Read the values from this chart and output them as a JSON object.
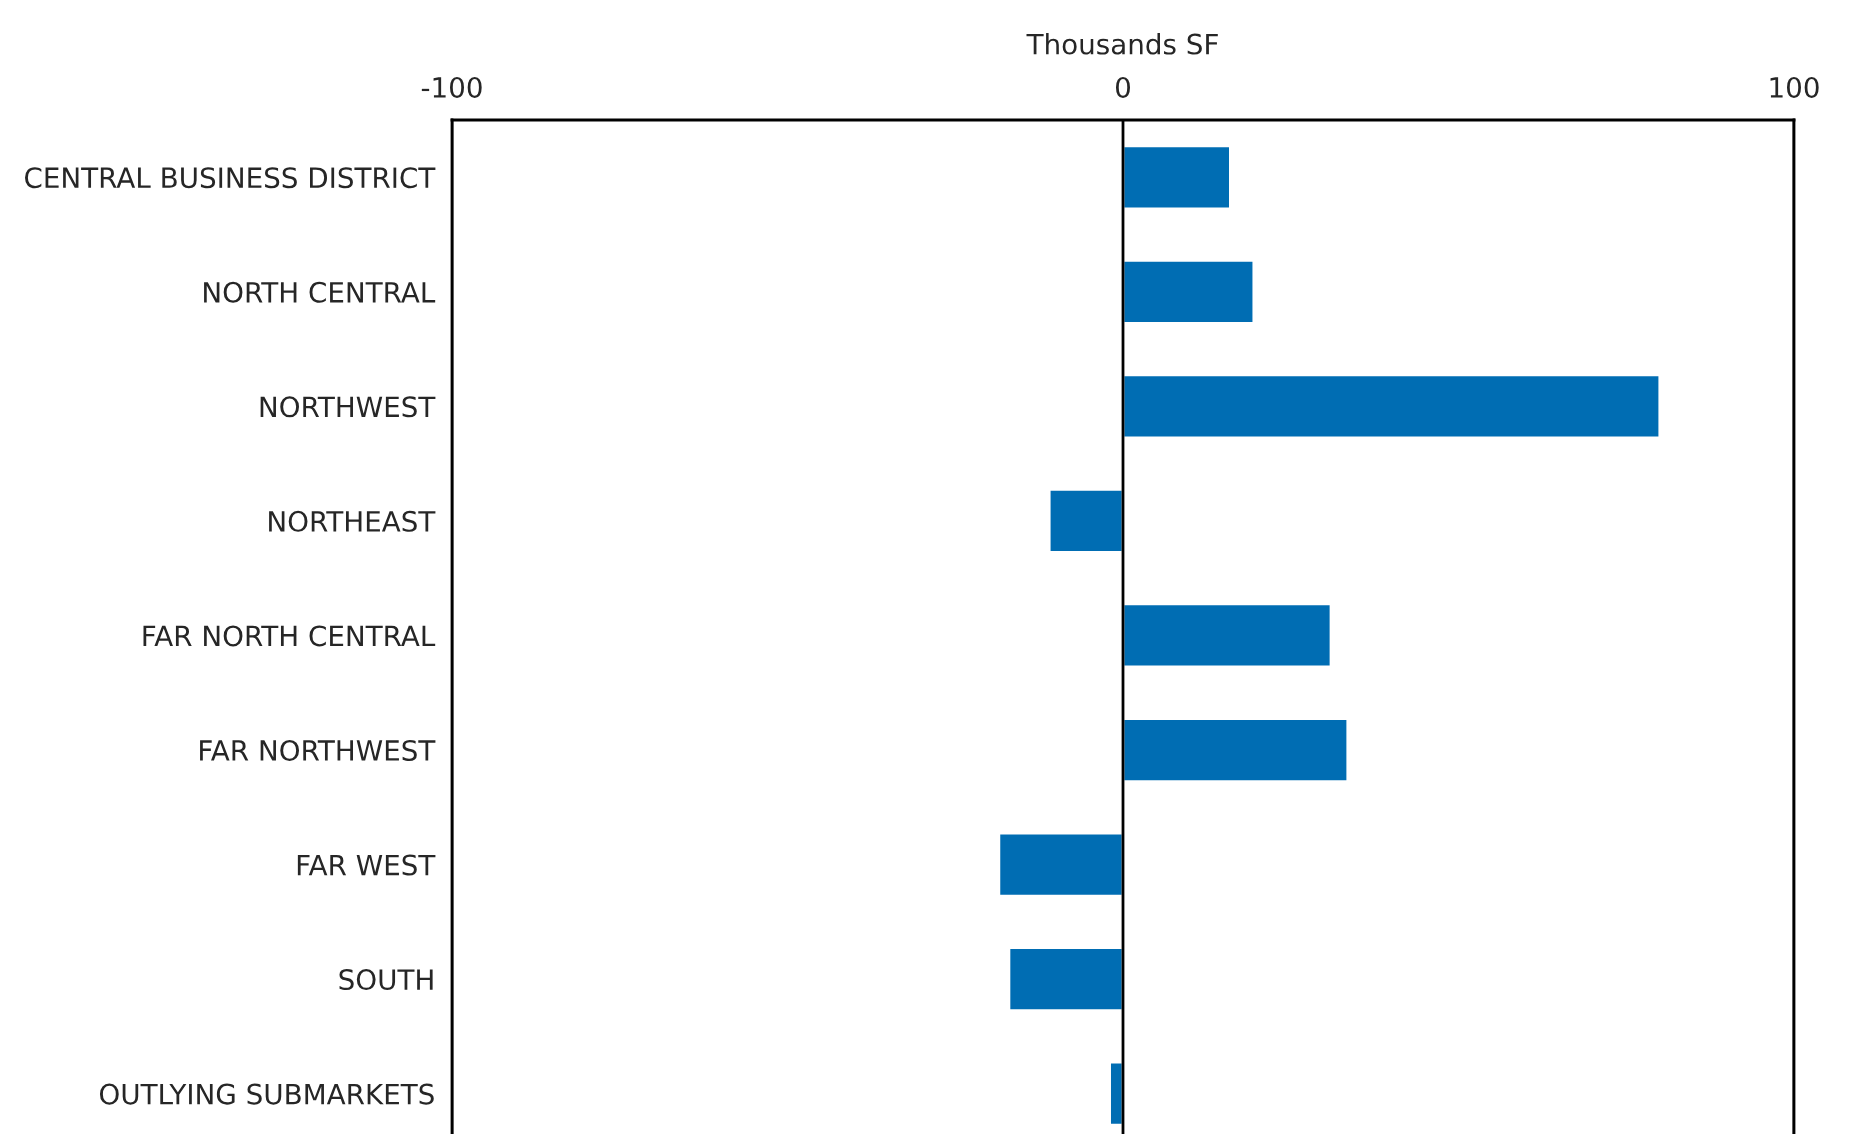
{
  "chart_data": {
    "type": "bar",
    "orientation": "horizontal",
    "xlabel": "Thousands SF",
    "categories": [
      "CENTRAL BUSINESS DISTRICT",
      "NORTH CENTRAL",
      "NORTHWEST",
      "NORTHEAST",
      "FAR NORTH CENTRAL",
      "FAR NORTHWEST",
      "FAR WEST",
      "SOUTH",
      "OUTLYING SUBMARKETS"
    ],
    "values": [
      16,
      19.5,
      80,
      -11,
      31,
      33.5,
      -18.5,
      -17,
      -2
    ],
    "color": "#006db3",
    "xlim": [
      -100,
      100
    ],
    "xticks": [
      -100,
      0,
      100
    ],
    "grid": "x",
    "legend": false
  }
}
